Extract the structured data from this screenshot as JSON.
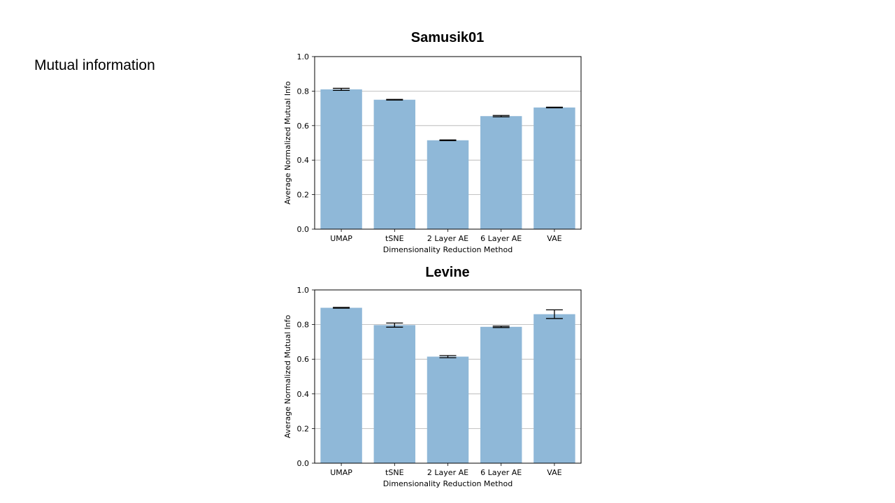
{
  "slide": {
    "label": "Mutual information"
  },
  "chart_data": [
    {
      "type": "bar",
      "title": "Samusik01",
      "categories": [
        "UMAP",
        "tSNE",
        "2 Layer AE",
        "6 Layer AE",
        "VAE"
      ],
      "values": [
        0.81,
        0.75,
        0.515,
        0.655,
        0.705
      ],
      "errors": [
        0.006,
        0.002,
        0.002,
        0.004,
        0.002
      ],
      "xlabel": "Dimensionality Reduction Method",
      "ylabel": "Average Normalized Mutual Info",
      "ylim": [
        0,
        1.0
      ],
      "yticks": [
        "0.0",
        "0.2",
        "0.4",
        "0.6",
        "0.8",
        "1.0"
      ],
      "grid": true,
      "bar_color": "#8fb8d8"
    },
    {
      "type": "bar",
      "title": "Levine",
      "categories": [
        "UMAP",
        "tSNE",
        "2 Layer AE",
        "6 Layer AE",
        "VAE"
      ],
      "values": [
        0.897,
        0.797,
        0.615,
        0.787,
        0.86
      ],
      "errors": [
        0.002,
        0.012,
        0.006,
        0.004,
        0.025
      ],
      "xlabel": "Dimensionality Reduction Method",
      "ylabel": "Average Normalized Mutual Info",
      "ylim": [
        0,
        1.0
      ],
      "yticks": [
        "0.0",
        "0.2",
        "0.4",
        "0.6",
        "0.8",
        "1.0"
      ],
      "grid": true,
      "bar_color": "#8fb8d8"
    }
  ]
}
